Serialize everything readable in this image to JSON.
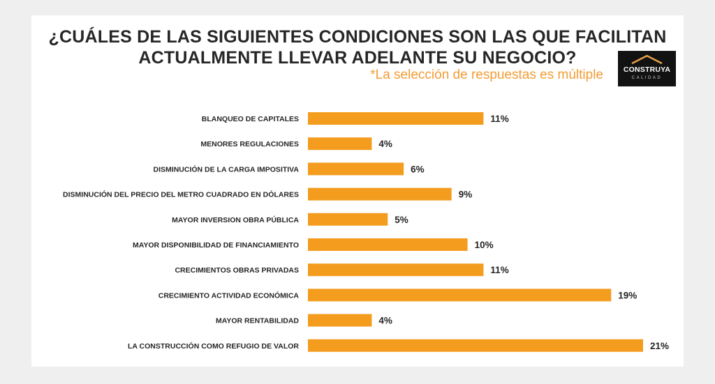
{
  "chart_data": {
    "type": "bar",
    "orientation": "horizontal",
    "title": "¿CUÁLES DE LAS SIGUIENTES CONDICIONES SON LAS QUE FACILITAN ACTUALMENTE LLEVAR ADELANTE SU NEGOCIO?",
    "title_lines": [
      "¿CUÁLES DE LAS SIGUIENTES CONDICIONES SON LAS QUE FACILITAN",
      "ACTUALMENTE LLEVAR ADELANTE SU NEGOCIO?"
    ],
    "subtitle": "*La selección de respuestas es múltiple",
    "categories": [
      "BLANQUEO DE CAPITALES",
      "MENORES REGULACIONES",
      "DISMINUCIÓN DE LA CARGA IMPOSITIVA",
      "DISMINUCIÓN DEL PRECIO DEL METRO CUADRADO EN DÓLARES",
      "MAYOR INVERSION OBRA PÚBLICA",
      "MAYOR DISPONIBILIDAD DE FINANCIAMIENTO",
      "CRECIMIENTOS OBRAS PRIVADAS",
      "CRECIMIENTO ACTIVIDAD ECONÓMICA",
      "MAYOR RENTABILIDAD",
      "LA CONSTRUCCIÓN COMO REFUGIO DE VALOR"
    ],
    "values": [
      11,
      4,
      6,
      9,
      5,
      10,
      11,
      19,
      4,
      21
    ],
    "value_labels": [
      "11%",
      "4%",
      "6%",
      "9%",
      "5%",
      "10%",
      "11%",
      "19%",
      "4%",
      "21%"
    ],
    "xlim": [
      0,
      21
    ],
    "bar_color": "#f39c1e",
    "grid": false,
    "legend": "none"
  },
  "logo": {
    "text": "CONSTRUYA",
    "subtext": "CALIDAD",
    "background": "#121212",
    "roof_color": "#e8a04a"
  }
}
